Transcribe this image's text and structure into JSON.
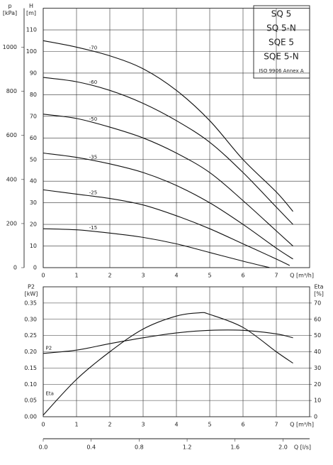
{
  "chart_data": [
    {
      "type": "line",
      "ylabel": "H",
      "yunit": "[m]",
      "y2label": "p",
      "y2unit": "[kPa]",
      "xlabel": "Q [m³/h]",
      "xlim": [
        0,
        8
      ],
      "xticks": [
        0,
        1,
        2,
        3,
        4,
        5,
        6,
        7
      ],
      "ylim": [
        0,
        120
      ],
      "yticks": [
        0,
        10,
        20,
        30,
        40,
        50,
        60,
        70,
        80,
        90,
        100,
        110
      ],
      "y2lim": [
        0,
        1177
      ],
      "y2ticks": [
        0,
        200,
        400,
        600,
        800,
        1000
      ],
      "grid": true,
      "annotation": [
        "SQ 5",
        "SQ 5-N",
        "SQE 5",
        "SQE 5-N",
        "ISO 9906 Annex A"
      ],
      "series": [
        {
          "name": "-70",
          "color": "#111111",
          "x": [
            0,
            1,
            2,
            3,
            4,
            5,
            6,
            7,
            7.5
          ],
          "values": [
            105,
            102,
            98,
            92,
            82,
            68,
            50,
            35,
            26
          ]
        },
        {
          "name": "-60",
          "color": "#111111",
          "x": [
            0,
            1,
            2,
            3,
            4,
            5,
            6,
            7,
            7.5
          ],
          "values": [
            88,
            86,
            82,
            76,
            68,
            58,
            44,
            28,
            20
          ]
        },
        {
          "name": "-50",
          "color": "#111111",
          "x": [
            0,
            1,
            2,
            3,
            4,
            5,
            6,
            7,
            7.5
          ],
          "values": [
            71,
            69,
            65,
            60,
            53,
            44,
            31,
            17,
            10
          ]
        },
        {
          "name": "-35",
          "color": "#111111",
          "x": [
            0,
            1,
            2,
            3,
            4,
            5,
            6,
            7,
            7.5
          ],
          "values": [
            53,
            51,
            48,
            44,
            38,
            30,
            20,
            9,
            4
          ]
        },
        {
          "name": "-25",
          "color": "#111111",
          "x": [
            0,
            1,
            2,
            3,
            4,
            5,
            6,
            7,
            7.4
          ],
          "values": [
            36,
            34,
            32,
            29,
            24,
            18,
            11,
            4,
            1
          ]
        },
        {
          "name": "-15",
          "color": "#111111",
          "x": [
            0,
            1,
            2,
            3,
            4,
            5,
            6,
            6.8
          ],
          "values": [
            18,
            17.5,
            16,
            14,
            11,
            7,
            3,
            0
          ]
        }
      ]
    },
    {
      "type": "line",
      "ylabel": "P2",
      "yunit": "[kW]",
      "y2label": "Eta",
      "y2unit": "[%]",
      "xlabel": "Q [m³/h]",
      "x2label": "Q [l/s]",
      "xlim": [
        0,
        8
      ],
      "xticks": [
        0,
        1,
        2,
        3,
        4,
        5,
        6,
        7
      ],
      "x2lim": [
        0,
        2.222
      ],
      "x2ticks": [
        {
          "value": 0,
          "label": "0.0"
        },
        0.4,
        0.8,
        1.2,
        1.6,
        {
          "value": 2,
          "label": "2.0"
        }
      ],
      "ylim": [
        0,
        0.4
      ],
      "yticks": [
        {
          "value": 0,
          "label": "0.00"
        },
        0.05,
        {
          "value": 0.1,
          "label": "0.10"
        },
        0.15,
        {
          "value": 0.2,
          "label": "0.20"
        },
        0.25,
        {
          "value": 0.3,
          "label": "0.30"
        },
        0.35
      ],
      "y2lim": [
        0,
        80
      ],
      "y2ticks": [
        0,
        10,
        20,
        30,
        40,
        50,
        60,
        70
      ],
      "grid": true,
      "series": [
        {
          "name": "P2",
          "color": "#111111",
          "x": [
            0,
            1,
            2,
            3,
            4,
            5,
            6,
            7,
            7.5
          ],
          "values": [
            0.195,
            0.205,
            0.225,
            0.243,
            0.258,
            0.266,
            0.266,
            0.255,
            0.243
          ]
        },
        {
          "name": "Eta",
          "color": "#111111",
          "axis": "y2",
          "x": [
            0,
            1,
            2,
            3,
            4,
            4.7,
            5,
            6,
            7,
            7.5
          ],
          "values": [
            1,
            23,
            40,
            54,
            62,
            64,
            63,
            55,
            40,
            33
          ]
        }
      ]
    }
  ]
}
